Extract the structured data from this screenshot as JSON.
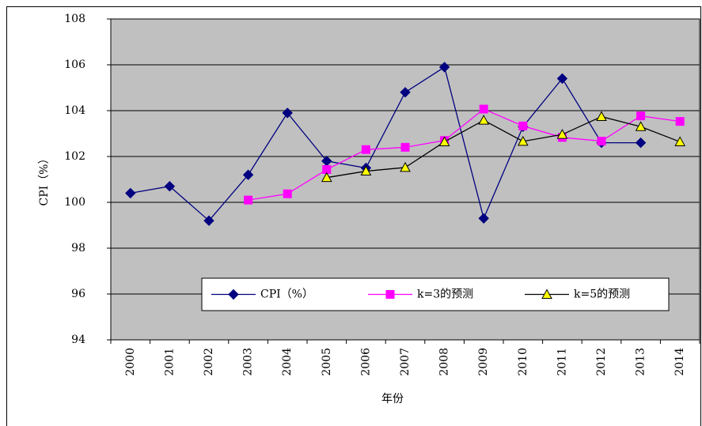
{
  "chart_data": {
    "type": "line",
    "x_label": "年份",
    "y_label": "CPI（%）",
    "categories": [
      "2000",
      "2001",
      "2002",
      "2003",
      "2004",
      "2005",
      "2006",
      "2007",
      "2008",
      "2009",
      "2010",
      "2011",
      "2012",
      "2013",
      "2014"
    ],
    "series": [
      {
        "name": "CPI（%）",
        "color": "#000080",
        "marker": "diamond",
        "marker_color": "#000080",
        "values": [
          100.4,
          100.7,
          99.2,
          101.2,
          103.9,
          101.8,
          101.5,
          104.8,
          105.9,
          99.3,
          103.3,
          105.4,
          102.6,
          102.6,
          null
        ]
      },
      {
        "name": "k=3的预测",
        "color": "#ff00ff",
        "marker": "square",
        "marker_color": "#ff00ff",
        "values": [
          null,
          null,
          null,
          100.1,
          100.37,
          101.43,
          102.3,
          102.4,
          102.7,
          104.07,
          103.33,
          102.83,
          102.67,
          103.77,
          103.53
        ]
      },
      {
        "name": "k=5的预测",
        "color": "#000000",
        "marker": "triangle",
        "marker_color": "#ffff00",
        "values": [
          null,
          null,
          null,
          null,
          null,
          101.08,
          101.36,
          101.52,
          102.64,
          103.58,
          102.66,
          102.96,
          103.74,
          103.3,
          102.64
        ]
      }
    ],
    "ylim": [
      94,
      108
    ],
    "yticks": [
      94,
      96,
      98,
      100,
      102,
      104,
      106,
      108
    ],
    "grid": true,
    "plot_color": "#c0c0c0",
    "legend": "bottom"
  }
}
